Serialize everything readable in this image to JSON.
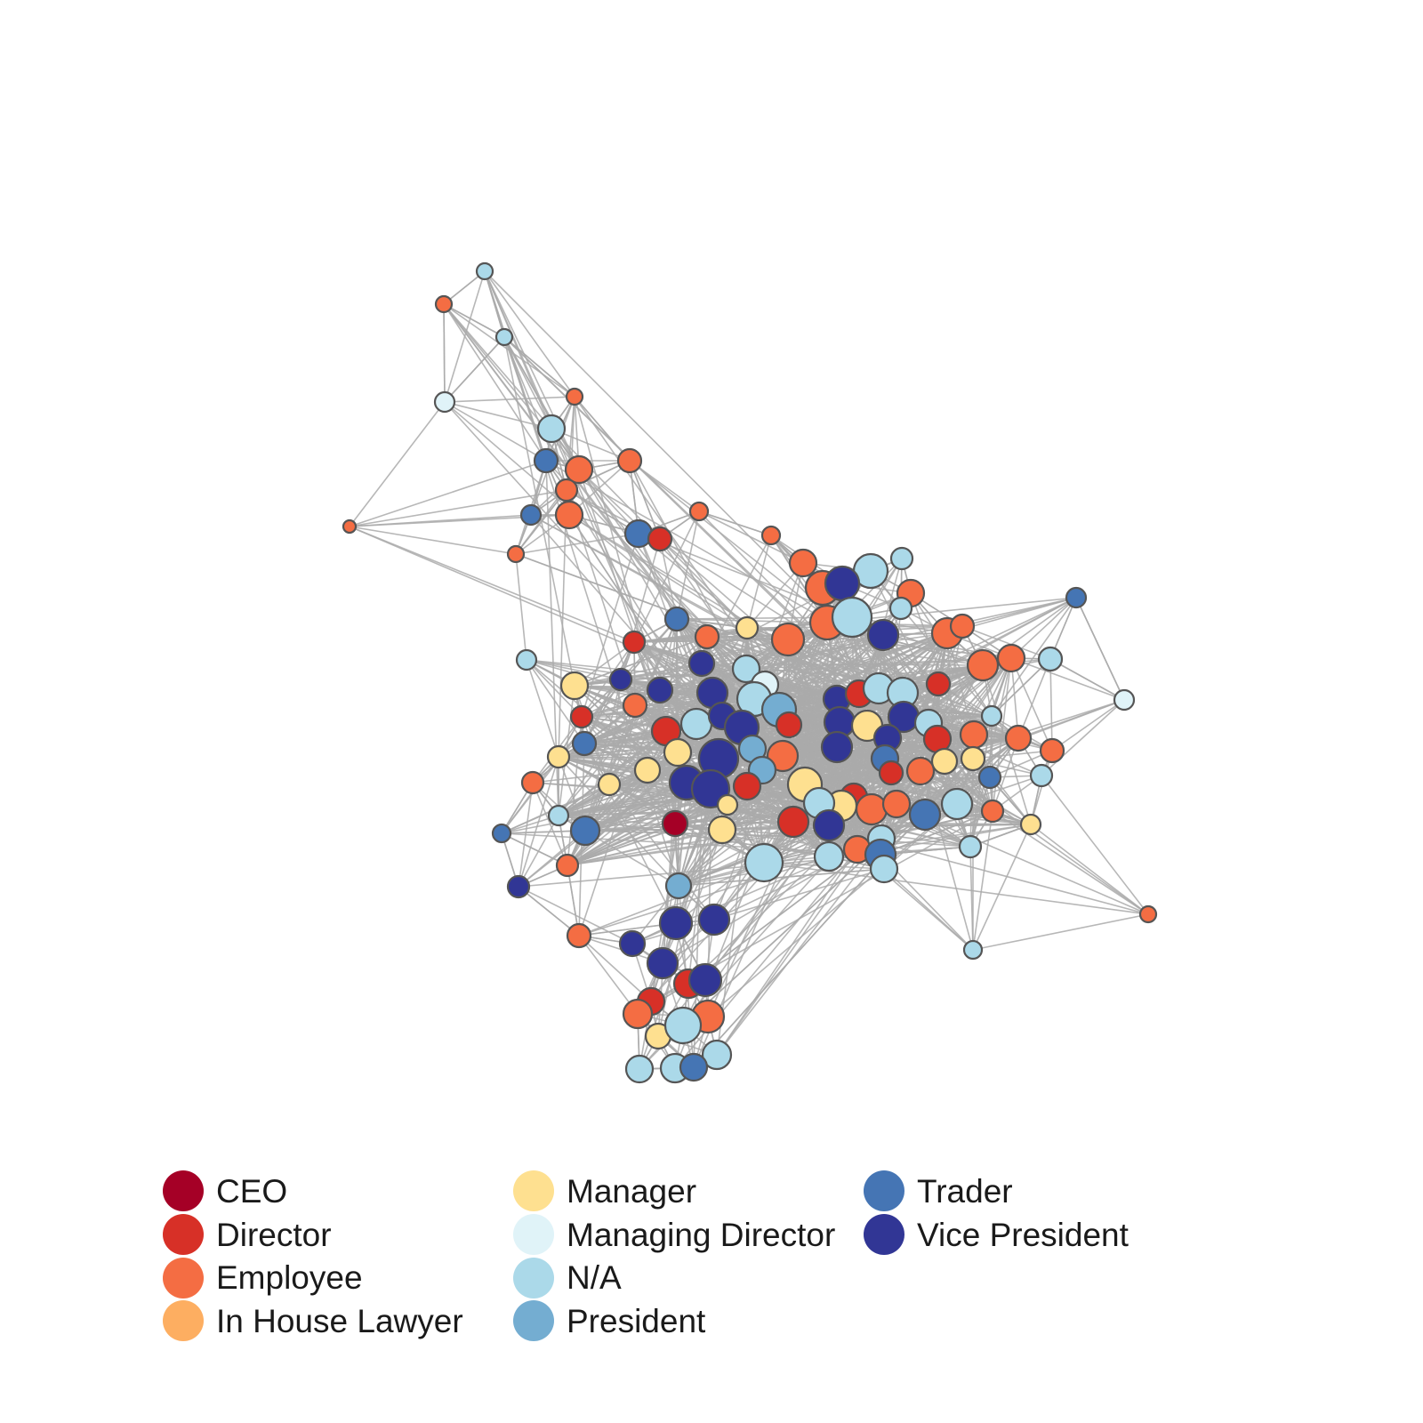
{
  "legend": {
    "items": [
      {
        "label": "CEO",
        "color": "#a50026"
      },
      {
        "label": "Director",
        "color": "#d73027"
      },
      {
        "label": "Employee",
        "color": "#f46d43"
      },
      {
        "label": "In House Lawyer",
        "color": "#fdae61"
      },
      {
        "label": "Manager",
        "color": "#fee090"
      },
      {
        "label": "Managing Director",
        "color": "#e0f3f8"
      },
      {
        "label": "N/A",
        "color": "#abd9e9"
      },
      {
        "label": "President",
        "color": "#74add1"
      },
      {
        "label": "Trader",
        "color": "#4575b4"
      },
      {
        "label": "Vice President",
        "color": "#313695"
      }
    ]
  },
  "style": {
    "edge_color": "#aaaaaa",
    "node_stroke": "#555555",
    "background": "#ffffff"
  }
}
